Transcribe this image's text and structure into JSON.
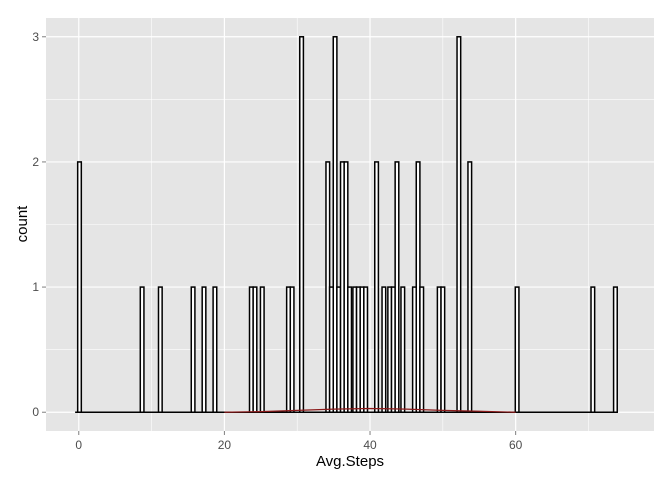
{
  "chart_data": {
    "type": "bar",
    "xlabel": "Avg.Steps",
    "ylabel": "count",
    "xlim": [
      -4.5,
      79
    ],
    "ylim": [
      -0.15,
      3.15
    ],
    "x_ticks": [
      0,
      20,
      40,
      60
    ],
    "y_ticks": [
      0,
      1,
      2,
      3
    ],
    "grid": true,
    "bin_width": 0.5,
    "bars": [
      {
        "x": 0.1,
        "count": 2
      },
      {
        "x": 8.7,
        "count": 1
      },
      {
        "x": 11.2,
        "count": 1
      },
      {
        "x": 15.7,
        "count": 1
      },
      {
        "x": 17.2,
        "count": 1
      },
      {
        "x": 18.7,
        "count": 1
      },
      {
        "x": 23.7,
        "count": 1
      },
      {
        "x": 24.2,
        "count": 1
      },
      {
        "x": 25.2,
        "count": 1
      },
      {
        "x": 28.8,
        "count": 1
      },
      {
        "x": 29.3,
        "count": 1
      },
      {
        "x": 30.6,
        "count": 3
      },
      {
        "x": 34.2,
        "count": 2
      },
      {
        "x": 34.7,
        "count": 1
      },
      {
        "x": 35.2,
        "count": 3
      },
      {
        "x": 35.7,
        "count": 1
      },
      {
        "x": 36.2,
        "count": 2
      },
      {
        "x": 36.7,
        "count": 2
      },
      {
        "x": 37.2,
        "count": 1
      },
      {
        "x": 37.9,
        "count": 1
      },
      {
        "x": 38.4,
        "count": 1
      },
      {
        "x": 38.9,
        "count": 1
      },
      {
        "x": 39.4,
        "count": 1
      },
      {
        "x": 40.9,
        "count": 2
      },
      {
        "x": 41.9,
        "count": 1
      },
      {
        "x": 42.7,
        "count": 1
      },
      {
        "x": 43.2,
        "count": 1
      },
      {
        "x": 43.7,
        "count": 2
      },
      {
        "x": 44.5,
        "count": 1
      },
      {
        "x": 46.1,
        "count": 1
      },
      {
        "x": 46.6,
        "count": 2
      },
      {
        "x": 47.1,
        "count": 1
      },
      {
        "x": 49.5,
        "count": 1
      },
      {
        "x": 50.0,
        "count": 1
      },
      {
        "x": 52.2,
        "count": 3
      },
      {
        "x": 53.7,
        "count": 2
      },
      {
        "x": 60.2,
        "count": 1
      },
      {
        "x": 70.6,
        "count": 1
      },
      {
        "x": 73.7,
        "count": 1
      }
    ],
    "baseline_range": [
      -0.5,
      74
    ],
    "density_curve": {
      "color": "#8b1a1a",
      "points": [
        [
          20,
          0.0
        ],
        [
          25,
          0.005
        ],
        [
          30,
          0.015
        ],
        [
          35,
          0.025
        ],
        [
          40,
          0.03
        ],
        [
          45,
          0.025
        ],
        [
          50,
          0.015
        ],
        [
          55,
          0.008
        ],
        [
          60,
          0.0
        ]
      ]
    },
    "colors": {
      "panel": "#e5e5e5",
      "grid": "#ffffff",
      "bar_fill": "#ffffff",
      "bar_stroke": "#000000"
    }
  }
}
